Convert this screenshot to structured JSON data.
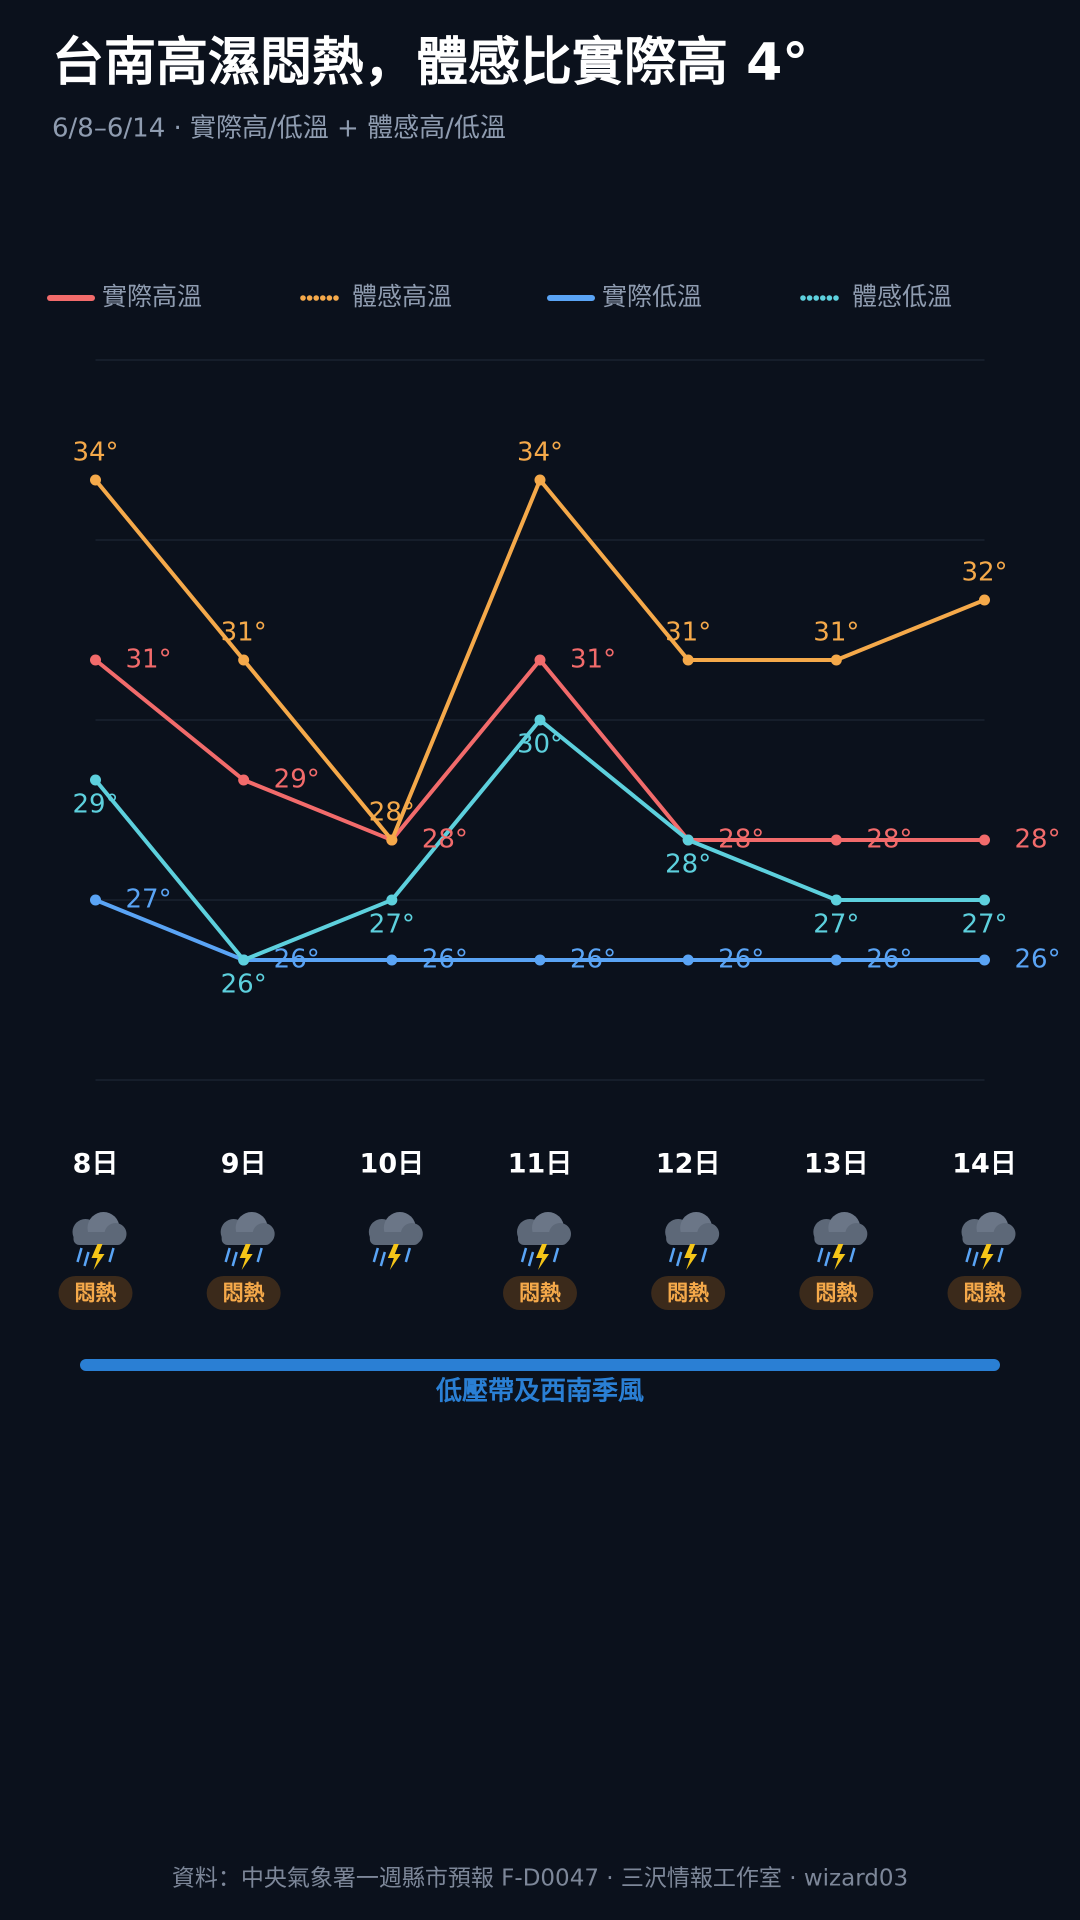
{
  "chart_data": {
    "type": "line",
    "title": "台南高濕悶熱，體感比實際高 4°",
    "subtitle": "6/8–6/14 · 實際高/低溫 + 體感高/低溫",
    "categories": [
      "8日",
      "9日",
      "10日",
      "11日",
      "12日",
      "13日",
      "14日"
    ],
    "series": [
      {
        "name": "實際高溫",
        "color": "#f26b6b",
        "legend_marker": "solid",
        "label_position": "right",
        "values": [
          31,
          29,
          28,
          31,
          28,
          28,
          28
        ],
        "value_labels": [
          "31°",
          "29°",
          "28°",
          "31°",
          "28°",
          "28°",
          "28°"
        ]
      },
      {
        "name": "體感高溫",
        "color": "#f5a94a",
        "legend_marker": "dotted",
        "label_position": "above",
        "values": [
          34,
          31,
          28,
          34,
          31,
          31,
          32
        ],
        "value_labels": [
          "34°",
          "31°",
          "28°",
          "34°",
          "31°",
          "31°",
          "32°"
        ]
      },
      {
        "name": "實際低溫",
        "color": "#5aa4f5",
        "legend_marker": "solid",
        "label_position": "right",
        "values": [
          27,
          26,
          26,
          26,
          26,
          26,
          26
        ],
        "value_labels": [
          "27°",
          "26°",
          "26°",
          "26°",
          "26°",
          "26°",
          "26°"
        ]
      },
      {
        "name": "體感低溫",
        "color": "#5dd0dd",
        "legend_marker": "dotted",
        "label_position": "below",
        "values": [
          29,
          26,
          27,
          30,
          28,
          27,
          27
        ],
        "value_labels": [
          "29°",
          "26°",
          "27°",
          "30°",
          "28°",
          "27°",
          "27°"
        ]
      }
    ],
    "ylim": [
      24,
      36
    ],
    "yticks": [
      24,
      27,
      30,
      33,
      36
    ],
    "grid": true,
    "conditions": [
      "悶熱",
      "悶熱",
      null,
      "悶熱",
      "悶熱",
      "悶熱",
      "悶熱"
    ],
    "weather_band": "低壓帶及西南季風",
    "source": "資料：中央氣象署一週縣市預報 F-D0047 · 三沢情報工作室 · wizard03"
  }
}
